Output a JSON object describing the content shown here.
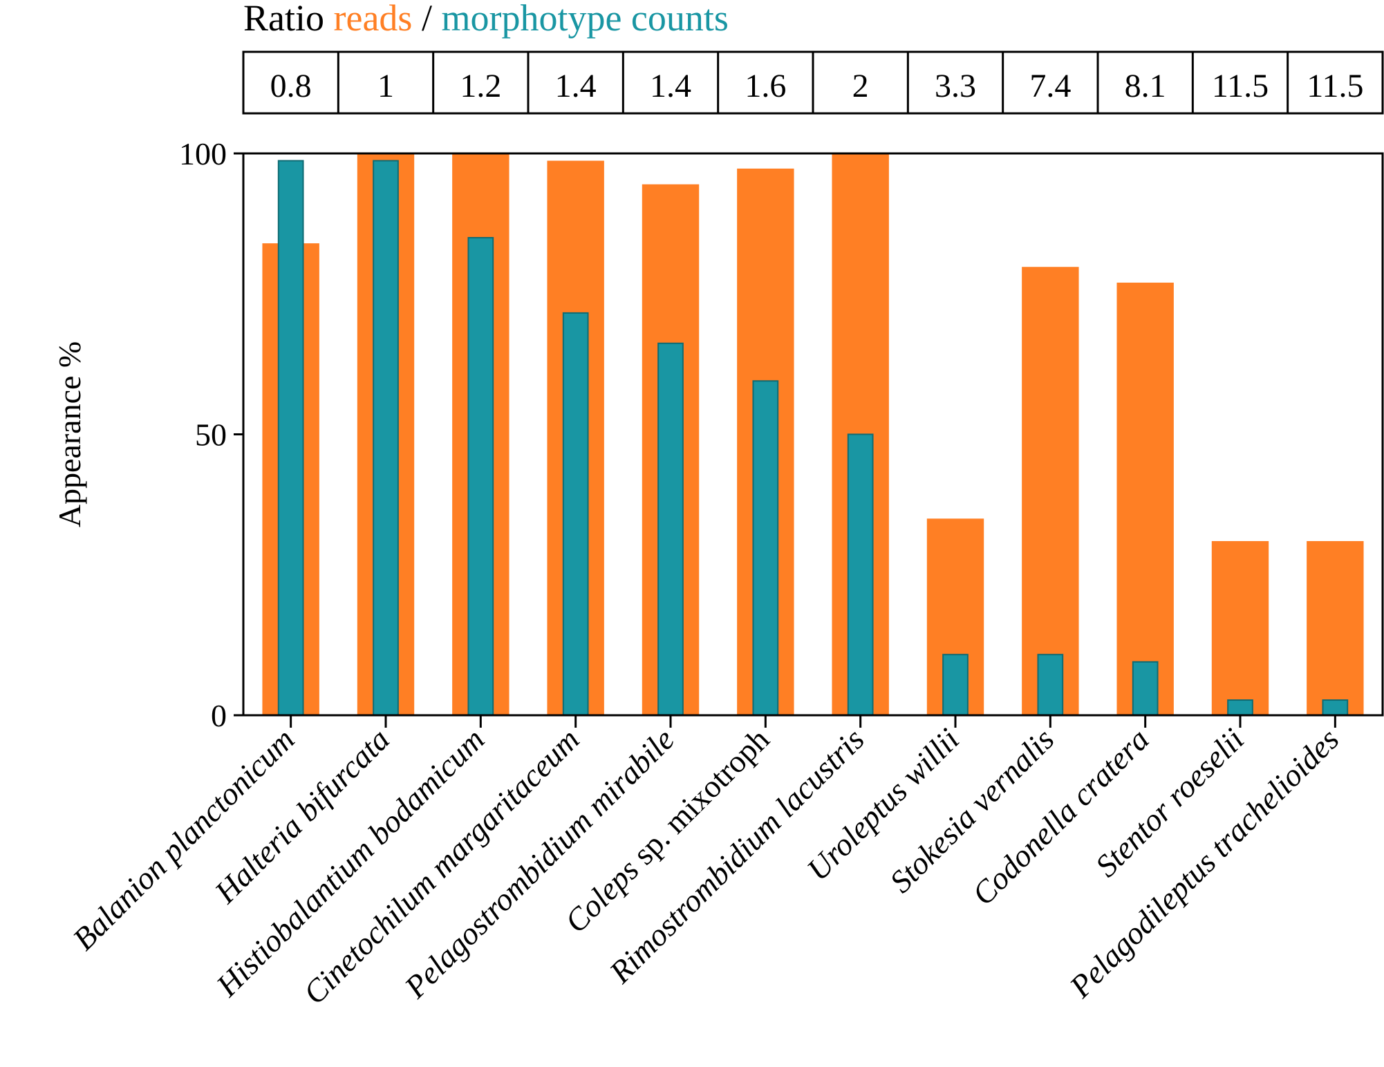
{
  "header": {
    "prefix": "Ratio ",
    "reads_label": "reads",
    "separator": " / ",
    "counts_label": "morphotype counts"
  },
  "colors": {
    "reads": "#FF7F24",
    "counts": "#1996A3",
    "counts_edge": "#0E6B73",
    "text": "#000000"
  },
  "chart_data": {
    "type": "bar",
    "ylabel": "Appearance %",
    "xlabel": "",
    "ylim": [
      0,
      100
    ],
    "yticks": [
      0,
      50,
      100
    ],
    "categories": [
      {
        "genus": "Balanion planctonicum",
        "rest": ""
      },
      {
        "genus": "Halteria bifurcata",
        "rest": ""
      },
      {
        "genus": "Histiobalantium bodamicum",
        "rest": ""
      },
      {
        "genus": "Cinetochilum margaritaceum",
        "rest": ""
      },
      {
        "genus": "Pelagostrombidium mirabile",
        "rest": ""
      },
      {
        "genus": "Coleps",
        "rest": " sp. mixotroph"
      },
      {
        "genus": "Rimostrombidium lacustris",
        "rest": ""
      },
      {
        "genus": "Uroleptus willii",
        "rest": ""
      },
      {
        "genus": "Stokesia vernalis",
        "rest": ""
      },
      {
        "genus": "Codonella cratera",
        "rest": ""
      },
      {
        "genus": "Stentor roeselii",
        "rest": ""
      },
      {
        "genus": "Pelagodileptus trachelioides",
        "rest": ""
      }
    ],
    "ratios": [
      "0.8",
      "1",
      "1.2",
      "1.4",
      "1.4",
      "1.6",
      "2",
      "3.3",
      "7.4",
      "8.1",
      "11.5",
      "11.5"
    ],
    "series": [
      {
        "name": "reads",
        "values": [
          84,
          100,
          100,
          98.7,
          94.5,
          97.3,
          100,
          35,
          79.8,
          77,
          31,
          31
        ]
      },
      {
        "name": "morphotype counts",
        "values": [
          98.7,
          98.7,
          85,
          71.6,
          66.2,
          59.5,
          50,
          10.8,
          10.8,
          9.5,
          2.7,
          2.7
        ]
      }
    ]
  }
}
